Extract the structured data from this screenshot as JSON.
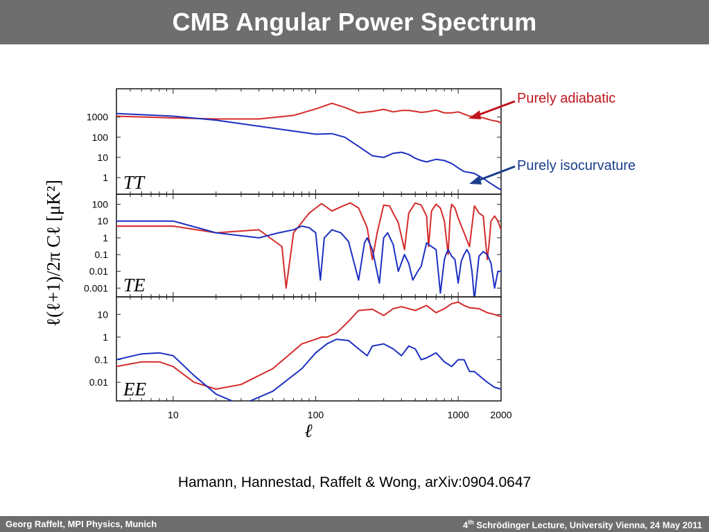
{
  "slide": {
    "title": "CMB Angular Power Spectrum",
    "citation": "Hamann, Hannestad, Raffelt & Wong, arXiv:0904.0647",
    "footer_left": "Georg Raffelt, MPI Physics, Munich",
    "footer_right_num": "4",
    "footer_right_sup": "th",
    "footer_right_rest": " Schrödinger Lecture, University Vienna, 24 May 2011"
  },
  "annotations": {
    "adiabatic": "Purely adiabatic",
    "isocurvature": "Purely isocurvature"
  },
  "chart_data": {
    "type": "line",
    "xlabel": "ℓ",
    "ylabel": "ℓ(ℓ+1)/2π  Cℓ  [μK²]",
    "xscale": "log",
    "xlim": [
      4,
      2000
    ],
    "xticks": [
      10,
      100,
      1000,
      2000
    ],
    "colors": {
      "adiabatic": "#d42a2a",
      "isocurvature": "#1c2fc0"
    },
    "panels": [
      {
        "name": "TT",
        "label": "TT",
        "yscale": "log",
        "ylim": [
          0.15,
          25000
        ],
        "yticks": [
          1,
          10,
          100,
          1000
        ],
        "ytick_labels": [
          "1",
          "10",
          "100",
          "1000"
        ],
        "series": [
          {
            "name": "Purely adiabatic",
            "color": "#d42a2a",
            "x": [
              4,
              10,
              20,
              40,
              70,
              100,
              130,
              160,
              200,
              250,
              300,
              350,
              400,
              450,
              500,
              550,
              600,
              700,
              800,
              900,
              1000,
              1100,
              1200,
              1300,
              1500,
              1700,
              1900,
              2000
            ],
            "y": [
              1100,
              900,
              800,
              800,
              1200,
              2500,
              4800,
              3000,
              1600,
              1900,
              2400,
              1800,
              2100,
              2100,
              1900,
              1700,
              1800,
              2200,
              1600,
              1600,
              1800,
              1400,
              1100,
              1100,
              900,
              700,
              600,
              500
            ]
          },
          {
            "name": "Purely isocurvature",
            "color": "#1c2fc0",
            "x": [
              4,
              10,
              20,
              40,
              70,
              100,
              130,
              160,
              200,
              250,
              300,
              350,
              400,
              450,
              500,
              550,
              600,
              700,
              800,
              900,
              1000,
              1100,
              1200,
              1300,
              1500,
              1700,
              1900,
              2000
            ],
            "y": [
              1500,
              1100,
              700,
              350,
              200,
              140,
              150,
              100,
              35,
              12,
              10,
              16,
              18,
              14,
              9,
              7,
              6,
              8,
              7,
              5,
              3,
              2,
              1.8,
              1.6,
              0.9,
              0.5,
              0.3,
              0.25
            ]
          }
        ]
      },
      {
        "name": "TE",
        "label": "TE",
        "yscale": "log",
        "ylim": [
          0.0003,
          400
        ],
        "yticks": [
          0.001,
          0.01,
          0.1,
          1,
          10,
          100
        ],
        "ytick_labels": [
          "0.001",
          "0.01",
          "0.1",
          "1",
          "10",
          "100"
        ],
        "series": [
          {
            "name": "Purely adiabatic",
            "color": "#d42a2a",
            "x": [
              4,
              10,
              20,
              40,
              58,
              62,
              70,
              90,
              110,
              130,
              150,
              175,
              200,
              230,
              250,
              270,
              300,
              330,
              350,
              380,
              420,
              450,
              500,
              550,
              600,
              620,
              650,
              700,
              750,
              800,
              850,
              880,
              900,
              950,
              1000,
              1100,
              1200,
              1300,
              1350,
              1400,
              1500,
              1600,
              1650,
              1700,
              1800,
              1900,
              2000
            ],
            "y": [
              5,
              5,
              2,
              3,
              0.3,
              0.001,
              2,
              30,
              110,
              40,
              70,
              120,
              60,
              4,
              0.05,
              2,
              90,
              80,
              30,
              8,
              0.2,
              30,
              120,
              90,
              20,
              0.3,
              40,
              100,
              60,
              10,
              0.1,
              30,
              100,
              60,
              15,
              2,
              0.3,
              80,
              50,
              30,
              20,
              0.05,
              0.5,
              10,
              20,
              10,
              3
            ]
          },
          {
            "name": "Purely isocurvature",
            "color": "#1c2fc0",
            "x": [
              4,
              10,
              20,
              40,
              55,
              70,
              80,
              90,
              100,
              108,
              115,
              130,
              150,
              170,
              200,
              220,
              230,
              250,
              280,
              300,
              320,
              350,
              380,
              420,
              450,
              480,
              520,
              550,
              600,
              650,
              700,
              750,
              800,
              820,
              850,
              900,
              950,
              1000,
              1050,
              1100,
              1150,
              1200,
              1250,
              1300,
              1400,
              1500,
              1600,
              1700,
              1800,
              1900,
              2000
            ],
            "y": [
              10,
              10,
              2,
              1,
              2,
              3,
              5,
              4,
              2,
              0.003,
              1,
              3,
              2,
              0.6,
              0.003,
              0.5,
              1,
              0.2,
              0.002,
              1,
              2,
              0.4,
              0.01,
              0.1,
              0.03,
              0.003,
              0.01,
              0.02,
              0.5,
              0.3,
              0.2,
              0.0005,
              0.05,
              0.1,
              0.2,
              0.08,
              0.05,
              0.002,
              0.04,
              0.1,
              0.2,
              0.1,
              0.01,
              0.0002,
              0.08,
              0.15,
              0.1,
              0.03,
              0.001,
              0.01,
              0.01
            ]
          }
        ]
      },
      {
        "name": "EE",
        "label": "EE",
        "yscale": "log",
        "ylim": [
          0.0015,
          60
        ],
        "yticks": [
          0.01,
          0.1,
          1,
          10
        ],
        "ytick_labels": [
          "0.01",
          "0.1",
          "1",
          "10"
        ],
        "series": [
          {
            "name": "Purely adiabatic",
            "color": "#d42a2a",
            "x": [
              4,
              6,
              8,
              10,
              14,
              20,
              30,
              50,
              80,
              100,
              110,
              120,
              140,
              170,
              200,
              250,
              300,
              350,
              400,
              500,
              600,
              700,
              800,
              900,
              1000,
              1100,
              1200,
              1400,
              1600,
              1800,
              2000
            ],
            "y": [
              0.05,
              0.08,
              0.08,
              0.05,
              0.01,
              0.005,
              0.008,
              0.04,
              0.5,
              0.8,
              1.0,
              1.0,
              1.5,
              5,
              15,
              17,
              9,
              18,
              22,
              15,
              25,
              12,
              18,
              30,
              35,
              25,
              20,
              18,
              12,
              10,
              8
            ]
          },
          {
            "name": "Purely isocurvature",
            "color": "#1c2fc0",
            "x": [
              4,
              6,
              8,
              10,
              14,
              20,
              30,
              50,
              80,
              100,
              120,
              140,
              170,
              200,
              230,
              250,
              300,
              350,
              400,
              450,
              500,
              550,
              600,
              700,
              800,
              900,
              1000,
              1100,
              1200,
              1300,
              1400,
              1600,
              1800,
              2000
            ],
            "y": [
              0.1,
              0.18,
              0.2,
              0.15,
              0.02,
              0.003,
              0.001,
              0.004,
              0.04,
              0.2,
              0.5,
              0.8,
              0.7,
              0.3,
              0.15,
              0.4,
              0.5,
              0.3,
              0.15,
              0.4,
              0.3,
              0.1,
              0.12,
              0.2,
              0.08,
              0.05,
              0.1,
              0.1,
              0.03,
              0.03,
              0.02,
              0.01,
              0.006,
              0.005
            ]
          }
        ]
      }
    ]
  }
}
